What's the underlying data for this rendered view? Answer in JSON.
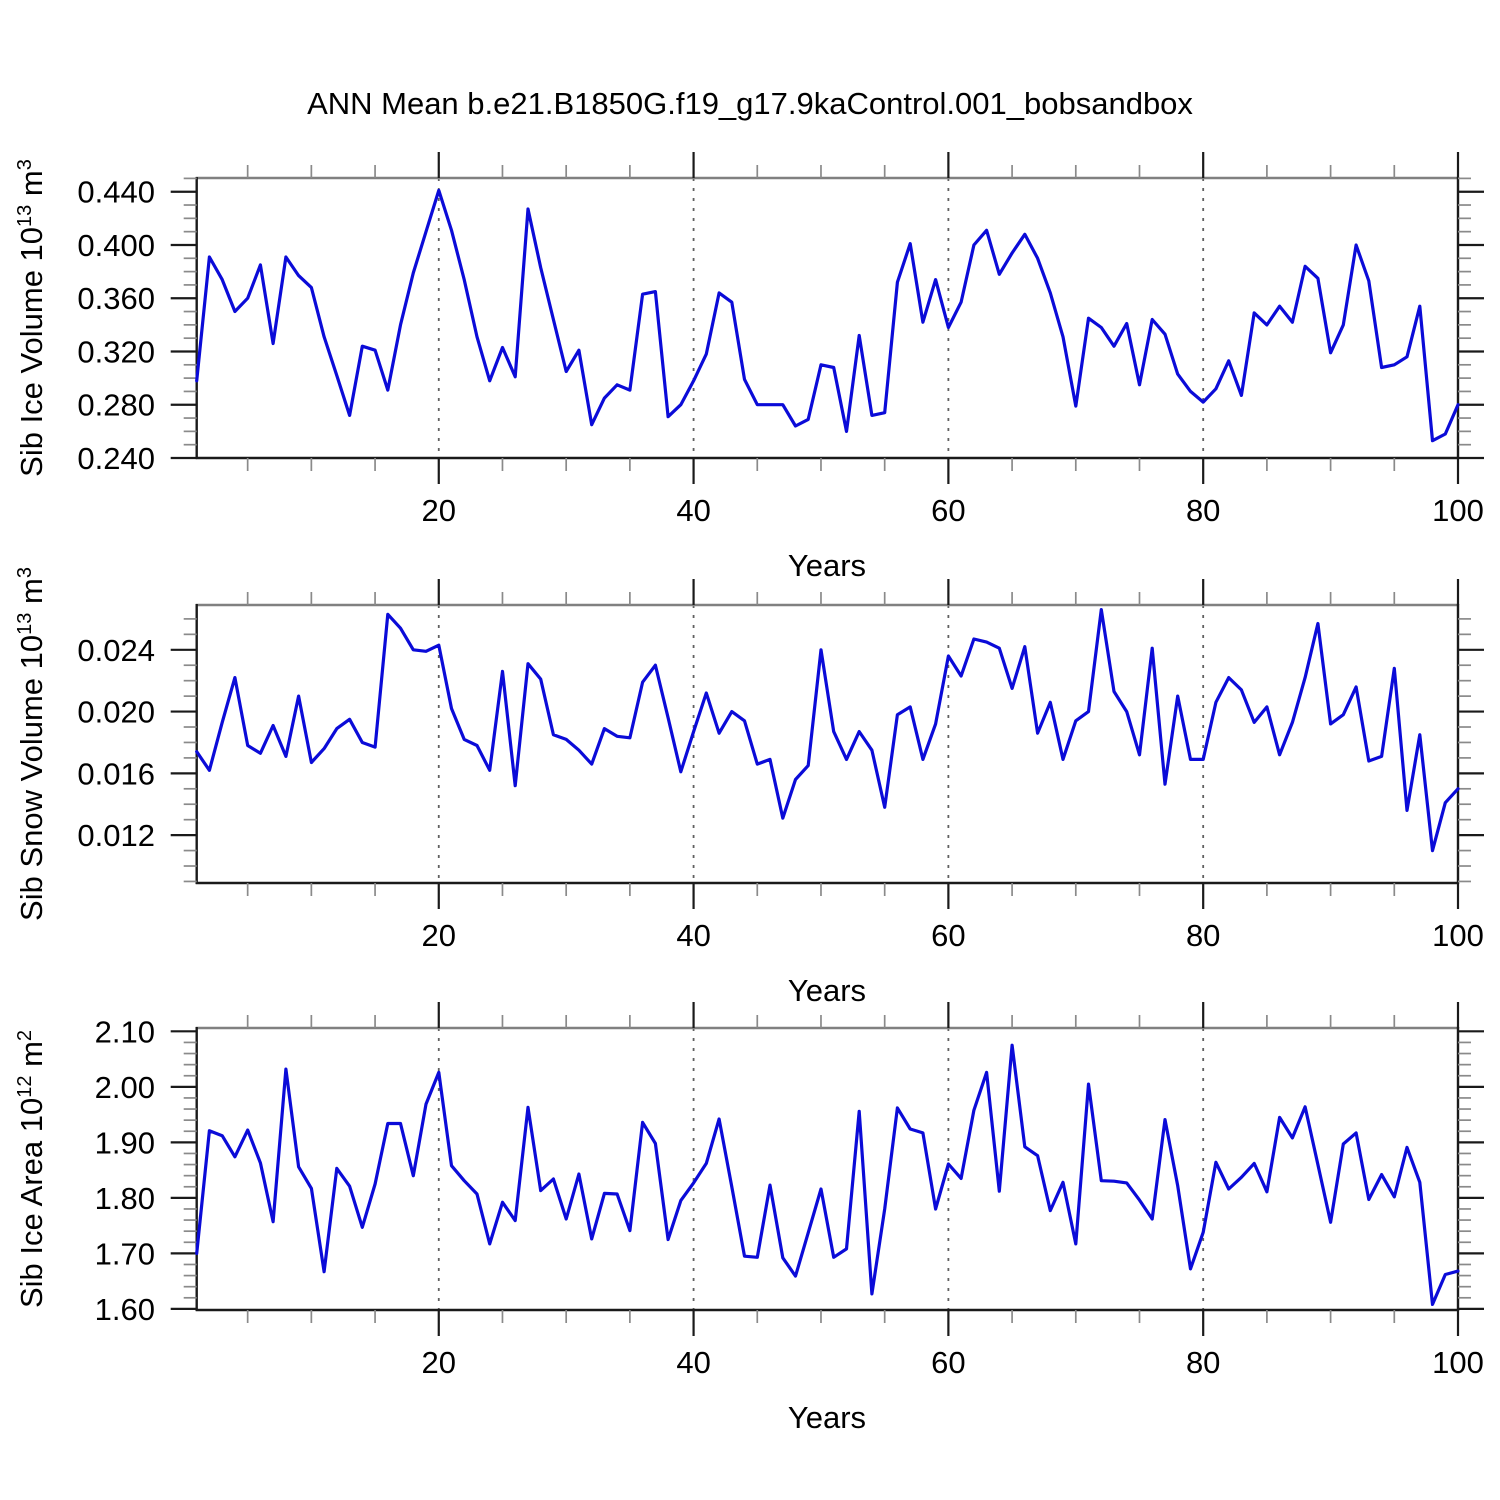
{
  "title": "ANN Mean b.e21.B1850G.f19_g17.9kaControl.001_bobsandbox",
  "colors": {
    "line": "#0b0bd8",
    "frame": "#1a1a1a",
    "top_frame": "#808080",
    "major_tick": "#1a1a1a",
    "minor_tick": "#8a8a8a",
    "gridline": "#606060",
    "text": "#000000"
  },
  "xaxis": {
    "label": "Years",
    "major_ticks": [
      20,
      40,
      60,
      80,
      100
    ],
    "major_tick_labels": [
      "20",
      "40",
      "60",
      "80",
      "100"
    ],
    "minor_step": 5,
    "xlim": [
      1,
      100
    ],
    "gridlines_at": [
      20,
      40,
      60,
      80
    ]
  },
  "chart_data": [
    {
      "type": "line",
      "title": "",
      "xlabel": "Years",
      "ylabel_base": "Sib Ice Volume 10",
      "ylabel_exp": "13",
      "ylabel_unit": " m",
      "ylabel_unit_exp": "3",
      "legend": "none",
      "grid": "dashed-vertical",
      "ylim": [
        0.24,
        0.4503
      ],
      "yticks": [
        0.24,
        0.28,
        0.32,
        0.36,
        0.4,
        0.44
      ],
      "ytick_labels": [
        "0.240",
        "0.280",
        "0.320",
        "0.360",
        "0.400",
        "0.440"
      ],
      "yminor_step": 0.01,
      "x_start": 1,
      "values": [
        0.298,
        0.391,
        0.374,
        0.35,
        0.36,
        0.385,
        0.326,
        0.391,
        0.377,
        0.368,
        0.331,
        0.302,
        0.272,
        0.324,
        0.321,
        0.291,
        0.34,
        0.379,
        0.41,
        0.441,
        0.411,
        0.374,
        0.331,
        0.298,
        0.323,
        0.301,
        0.427,
        0.383,
        0.344,
        0.305,
        0.321,
        0.265,
        0.285,
        0.295,
        0.291,
        0.363,
        0.365,
        0.271,
        0.28,
        0.298,
        0.318,
        0.364,
        0.357,
        0.299,
        0.28,
        0.28,
        0.28,
        0.264,
        0.269,
        0.31,
        0.308,
        0.26,
        0.332,
        0.272,
        0.274,
        0.372,
        0.401,
        0.342,
        0.374,
        0.338,
        0.357,
        0.4,
        0.411,
        0.378,
        0.394,
        0.408,
        0.39,
        0.364,
        0.331,
        0.279,
        0.345,
        0.338,
        0.324,
        0.341,
        0.295,
        0.344,
        0.333,
        0.303,
        0.29,
        0.282,
        0.292,
        0.313,
        0.287,
        0.349,
        0.34,
        0.354,
        0.342,
        0.384,
        0.375,
        0.319,
        0.34,
        0.4,
        0.373,
        0.308,
        0.31,
        0.316,
        0.354,
        0.253,
        0.258,
        0.28
      ]
    },
    {
      "type": "line",
      "title": "",
      "xlabel": "Years",
      "ylabel_base": "Sib Snow Volume 10",
      "ylabel_exp": "13",
      "ylabel_unit": " m",
      "ylabel_unit_exp": "3",
      "legend": "none",
      "grid": "dashed-vertical",
      "ylim": [
        0.0089,
        0.0269
      ],
      "yticks": [
        0.012,
        0.016,
        0.02,
        0.024
      ],
      "ytick_labels": [
        "0.012",
        "0.016",
        "0.020",
        "0.024"
      ],
      "yminor_step": 0.001,
      "x_start": 1,
      "values": [
        0.0174,
        0.0162,
        0.0193,
        0.0222,
        0.0178,
        0.0173,
        0.0191,
        0.0171,
        0.021,
        0.0167,
        0.0176,
        0.0189,
        0.0195,
        0.018,
        0.0177,
        0.0263,
        0.0254,
        0.024,
        0.0239,
        0.0243,
        0.0202,
        0.0182,
        0.0178,
        0.0162,
        0.0226,
        0.0152,
        0.0231,
        0.0221,
        0.0185,
        0.0182,
        0.0175,
        0.0166,
        0.0189,
        0.0184,
        0.0183,
        0.0219,
        0.023,
        0.0196,
        0.0161,
        0.0187,
        0.0212,
        0.0186,
        0.02,
        0.0194,
        0.0166,
        0.0169,
        0.0131,
        0.0156,
        0.0165,
        0.024,
        0.0187,
        0.0169,
        0.0187,
        0.0175,
        0.0138,
        0.0198,
        0.0203,
        0.0169,
        0.0192,
        0.0236,
        0.0223,
        0.0247,
        0.0245,
        0.0241,
        0.0215,
        0.0242,
        0.0186,
        0.0206,
        0.0169,
        0.0194,
        0.02,
        0.0266,
        0.0213,
        0.02,
        0.0172,
        0.0241,
        0.0153,
        0.021,
        0.0169,
        0.0169,
        0.0206,
        0.0222,
        0.0214,
        0.0193,
        0.0203,
        0.0172,
        0.0193,
        0.0222,
        0.0257,
        0.0192,
        0.0198,
        0.0216,
        0.0168,
        0.0171,
        0.0228,
        0.0136,
        0.0185,
        0.011,
        0.0141,
        0.015
      ]
    },
    {
      "type": "line",
      "title": "",
      "xlabel": "Years",
      "ylabel_base": "Sib Ice Area 10",
      "ylabel_exp": "12",
      "ylabel_unit": " m",
      "ylabel_unit_exp": "2",
      "legend": "none",
      "grid": "dashed-vertical",
      "ylim": [
        1.598,
        2.106
      ],
      "yticks": [
        1.6,
        1.7,
        1.8,
        1.9,
        2.0,
        2.1
      ],
      "ytick_labels": [
        "1.60",
        "1.70",
        "1.80",
        "1.90",
        "2.00",
        "2.10"
      ],
      "yminor_step": 0.02,
      "x_start": 1,
      "values": [
        1.7,
        1.921,
        1.912,
        1.874,
        1.922,
        1.863,
        1.757,
        2.032,
        1.856,
        1.817,
        1.667,
        1.853,
        1.821,
        1.747,
        1.825,
        1.934,
        1.934,
        1.84,
        1.969,
        2.026,
        1.858,
        1.831,
        1.807,
        1.717,
        1.792,
        1.759,
        1.963,
        1.813,
        1.834,
        1.762,
        1.843,
        1.726,
        1.808,
        1.807,
        1.741,
        1.936,
        1.898,
        1.725,
        1.795,
        1.827,
        1.862,
        1.942,
        1.82,
        1.695,
        1.693,
        1.823,
        1.692,
        1.659,
        1.737,
        1.816,
        1.693,
        1.708,
        1.956,
        1.627,
        1.78,
        1.962,
        1.924,
        1.917,
        1.78,
        1.861,
        1.835,
        1.958,
        2.026,
        1.812,
        2.075,
        1.892,
        1.876,
        1.777,
        1.828,
        1.717,
        2.005,
        1.831,
        1.83,
        1.827,
        1.796,
        1.762,
        1.941,
        1.822,
        1.672,
        1.738,
        1.864,
        1.816,
        1.837,
        1.862,
        1.811,
        1.945,
        1.908,
        1.964,
        1.86,
        1.756,
        1.897,
        1.917,
        1.797,
        1.842,
        1.802,
        1.891,
        1.828,
        1.608,
        1.662,
        1.668
      ]
    }
  ]
}
